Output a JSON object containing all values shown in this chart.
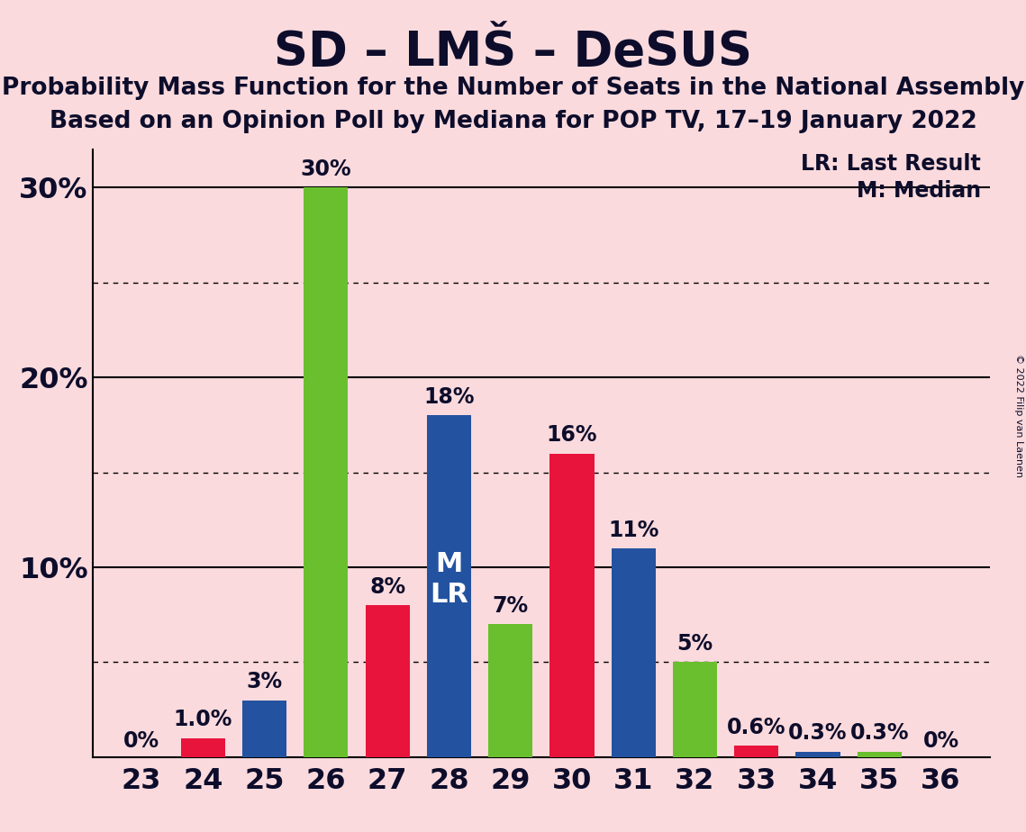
{
  "title": "SD – LMŠ – DeSUS",
  "subtitle1": "Probability Mass Function for the Number of Seats in the National Assembly",
  "subtitle2": "Based on an Opinion Poll by Mediana for POP TV, 17–19 January 2022",
  "copyright": "© 2022 Filip van Laenen",
  "seats": [
    23,
    24,
    25,
    26,
    27,
    28,
    29,
    30,
    31,
    32,
    33,
    34,
    35,
    36
  ],
  "values": [
    0.0,
    1.0,
    3.0,
    30.0,
    8.0,
    18.0,
    7.0,
    16.0,
    11.0,
    5.0,
    0.6,
    0.3,
    0.3,
    0.0
  ],
  "bar_colors": [
    "#e8143c",
    "#e8143c",
    "#2352a0",
    "#6abf2e",
    "#e8143c",
    "#2352a0",
    "#6abf2e",
    "#e8143c",
    "#2352a0",
    "#6abf2e",
    "#e8143c",
    "#2352a0",
    "#6abf2e",
    "#e8143c"
  ],
  "labels": [
    "0%",
    "1.0%",
    "3%",
    "30%",
    "8%",
    "18%",
    "7%",
    "16%",
    "11%",
    "5%",
    "0.6%",
    "0.3%",
    "0.3%",
    "0%"
  ],
  "median_seat": 28,
  "lr_seat": 28,
  "ylim": [
    0,
    32
  ],
  "background_color": "#fadadd",
  "solid_gridlines": [
    10,
    20,
    30
  ],
  "dotted_gridlines": [
    5,
    15,
    25
  ],
  "legend_lr": "LR: Last Result",
  "legend_m": "M: Median",
  "title_fontsize": 38,
  "subtitle_fontsize": 19,
  "tick_fontsize": 23,
  "label_fontsize": 17,
  "bar_width": 0.72
}
